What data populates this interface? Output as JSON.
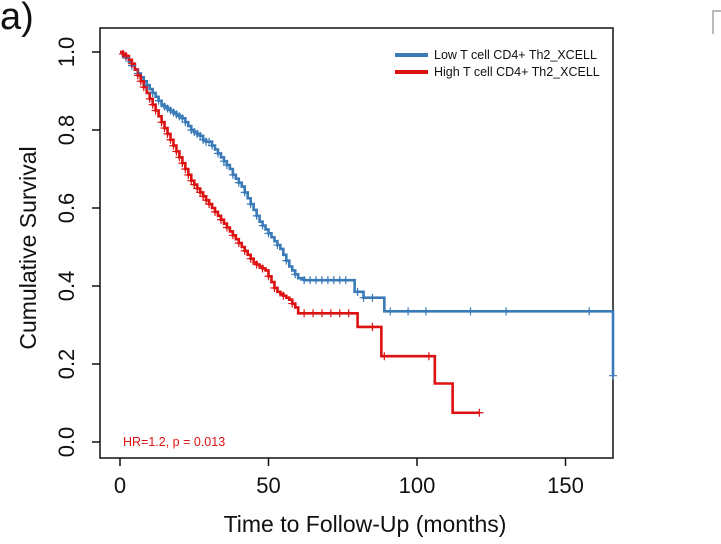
{
  "panel_label": "a)",
  "chart_data": {
    "type": "line",
    "subtype": "kaplan-meier",
    "title": "",
    "xlabel": "Time to Follow-Up (months)",
    "ylabel": "Cumulative Survival",
    "xlim": [
      -5,
      170
    ],
    "ylim": [
      -0.05,
      1.03
    ],
    "x_ticks": [
      0,
      50,
      100,
      150
    ],
    "y_ticks": [
      0.0,
      0.2,
      0.4,
      0.6,
      0.8,
      1.0
    ],
    "y_tick_labels": [
      "0.0",
      "0.2",
      "0.4",
      "0.6",
      "0.8",
      "1.0"
    ],
    "legend_position": "top-right",
    "annotation": {
      "text": "HR=1.2, p = 0.013",
      "x": 1,
      "y": 0.0,
      "color": "#dd1111"
    },
    "series": [
      {
        "name": "Low T cell CD4+ Th2_XCELL",
        "color": "#3a7ab8",
        "steps": [
          [
            0,
            1.0
          ],
          [
            1,
            0.99
          ],
          [
            2,
            0.985
          ],
          [
            3,
            0.975
          ],
          [
            4,
            0.965
          ],
          [
            5,
            0.955
          ],
          [
            6,
            0.945
          ],
          [
            7,
            0.935
          ],
          [
            8,
            0.925
          ],
          [
            9,
            0.915
          ],
          [
            10,
            0.905
          ],
          [
            11,
            0.895
          ],
          [
            12,
            0.885
          ],
          [
            13,
            0.875
          ],
          [
            14,
            0.865
          ],
          [
            15,
            0.86
          ],
          [
            16,
            0.855
          ],
          [
            17,
            0.85
          ],
          [
            18,
            0.845
          ],
          [
            19,
            0.84
          ],
          [
            20,
            0.835
          ],
          [
            21,
            0.83
          ],
          [
            22,
            0.82
          ],
          [
            23,
            0.81
          ],
          [
            24,
            0.8
          ],
          [
            25,
            0.795
          ],
          [
            26,
            0.79
          ],
          [
            27,
            0.785
          ],
          [
            28,
            0.775
          ],
          [
            29,
            0.77
          ],
          [
            30,
            0.77
          ],
          [
            31,
            0.76
          ],
          [
            32,
            0.75
          ],
          [
            33,
            0.74
          ],
          [
            34,
            0.73
          ],
          [
            35,
            0.72
          ],
          [
            36,
            0.71
          ],
          [
            37,
            0.7
          ],
          [
            38,
            0.685
          ],
          [
            39,
            0.675
          ],
          [
            40,
            0.665
          ],
          [
            41,
            0.655
          ],
          [
            42,
            0.64
          ],
          [
            43,
            0.625
          ],
          [
            44,
            0.61
          ],
          [
            45,
            0.595
          ],
          [
            46,
            0.58
          ],
          [
            47,
            0.565
          ],
          [
            48,
            0.555
          ],
          [
            49,
            0.545
          ],
          [
            50,
            0.535
          ],
          [
            51,
            0.525
          ],
          [
            52,
            0.515
          ],
          [
            53,
            0.505
          ],
          [
            54,
            0.495
          ],
          [
            55,
            0.48
          ],
          [
            56,
            0.465
          ],
          [
            57,
            0.45
          ],
          [
            58,
            0.44
          ],
          [
            59,
            0.43
          ],
          [
            60,
            0.42
          ],
          [
            62,
            0.415
          ],
          [
            64,
            0.415
          ],
          [
            66,
            0.415
          ],
          [
            68,
            0.415
          ],
          [
            70,
            0.415
          ],
          [
            72,
            0.415
          ],
          [
            76,
            0.415
          ],
          [
            79,
            0.385
          ],
          [
            82,
            0.37
          ],
          [
            85,
            0.37
          ],
          [
            89,
            0.335
          ],
          [
            95,
            0.335
          ],
          [
            105,
            0.335
          ],
          [
            118,
            0.335
          ],
          [
            130,
            0.335
          ],
          [
            150,
            0.335
          ],
          [
            165,
            0.335
          ],
          [
            166,
            0.17
          ]
        ],
        "censor_x": [
          2,
          4,
          6,
          9,
          11,
          13,
          15,
          16,
          17,
          18,
          19,
          20,
          21,
          22,
          24,
          25,
          26,
          27,
          28,
          29,
          30,
          31,
          33,
          35,
          36,
          38,
          40,
          42,
          44,
          46,
          48,
          50,
          53,
          56,
          59,
          62,
          64,
          66,
          68,
          70,
          72,
          74,
          76,
          80,
          82,
          85,
          91,
          97,
          103,
          118,
          130,
          158,
          166
        ]
      },
      {
        "name": "High T cell CD4+ Th2_XCELL",
        "color": "#dd1111",
        "steps": [
          [
            0,
            1.0
          ],
          [
            1,
            0.995
          ],
          [
            2,
            0.99
          ],
          [
            3,
            0.98
          ],
          [
            4,
            0.97
          ],
          [
            5,
            0.955
          ],
          [
            6,
            0.94
          ],
          [
            7,
            0.925
          ],
          [
            8,
            0.91
          ],
          [
            9,
            0.895
          ],
          [
            10,
            0.88
          ],
          [
            11,
            0.865
          ],
          [
            12,
            0.85
          ],
          [
            13,
            0.835
          ],
          [
            14,
            0.82
          ],
          [
            15,
            0.805
          ],
          [
            16,
            0.79
          ],
          [
            17,
            0.775
          ],
          [
            18,
            0.76
          ],
          [
            19,
            0.745
          ],
          [
            20,
            0.73
          ],
          [
            21,
            0.715
          ],
          [
            22,
            0.7
          ],
          [
            23,
            0.685
          ],
          [
            24,
            0.67
          ],
          [
            25,
            0.66
          ],
          [
            26,
            0.65
          ],
          [
            27,
            0.64
          ],
          [
            28,
            0.63
          ],
          [
            29,
            0.62
          ],
          [
            30,
            0.61
          ],
          [
            31,
            0.6
          ],
          [
            32,
            0.59
          ],
          [
            33,
            0.58
          ],
          [
            34,
            0.57
          ],
          [
            35,
            0.56
          ],
          [
            36,
            0.55
          ],
          [
            37,
            0.54
          ],
          [
            38,
            0.53
          ],
          [
            39,
            0.52
          ],
          [
            40,
            0.51
          ],
          [
            41,
            0.5
          ],
          [
            42,
            0.49
          ],
          [
            43,
            0.48
          ],
          [
            44,
            0.47
          ],
          [
            45,
            0.46
          ],
          [
            46,
            0.455
          ],
          [
            47,
            0.45
          ],
          [
            48,
            0.445
          ],
          [
            49,
            0.44
          ],
          [
            50,
            0.425
          ],
          [
            51,
            0.41
          ],
          [
            52,
            0.395
          ],
          [
            53,
            0.385
          ],
          [
            54,
            0.38
          ],
          [
            55,
            0.375
          ],
          [
            56,
            0.37
          ],
          [
            57,
            0.365
          ],
          [
            58,
            0.355
          ],
          [
            59,
            0.345
          ],
          [
            60,
            0.33
          ],
          [
            65,
            0.33
          ],
          [
            70,
            0.33
          ],
          [
            75,
            0.33
          ],
          [
            80,
            0.295
          ],
          [
            85,
            0.295
          ],
          [
            88,
            0.22
          ],
          [
            95,
            0.22
          ],
          [
            100,
            0.22
          ],
          [
            106,
            0.15
          ],
          [
            112,
            0.075
          ],
          [
            121,
            0.075
          ]
        ],
        "censor_x": [
          1,
          2,
          4,
          6,
          7,
          8,
          10,
          11,
          12,
          14,
          15,
          16,
          17,
          18,
          19,
          20,
          21,
          22,
          23,
          24,
          25,
          26,
          27,
          28,
          29,
          30,
          32,
          34,
          36,
          38,
          40,
          42,
          44,
          46,
          48,
          50,
          52,
          55,
          58,
          62,
          65,
          68,
          71,
          74,
          77,
          85,
          89,
          104,
          121
        ]
      }
    ]
  }
}
